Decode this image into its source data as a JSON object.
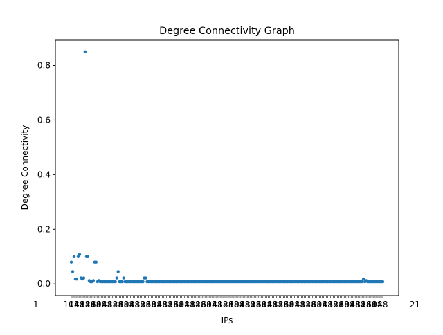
{
  "chart_data": {
    "type": "scatter",
    "title": "Degree Connectivity Graph",
    "xlabel": "IPs",
    "ylabel": "Degree Connectivity",
    "ylim": [
      -0.0425,
      0.8925
    ],
    "y_ticks": [
      0.0,
      0.2,
      0.4,
      0.6,
      0.8
    ],
    "y_tick_labels": [
      "0.0",
      "0.2",
      "0.4",
      "0.6",
      "0.8"
    ],
    "x_tick_labels_note": "overlapping IP labels (illegible)",
    "grid": false,
    "legend": "none",
    "marker_color": "#1f77b4",
    "series": [
      {
        "values": [
          0.08,
          0.045,
          0.1,
          0.018,
          0.018,
          0.1,
          0.108,
          0.022,
          0.018,
          0.022,
          0.85,
          0.1,
          0.1,
          0.012,
          0.008,
          0.008,
          0.012,
          0.08,
          0.08,
          0.008,
          0.012,
          0.008,
          0.008,
          0.008,
          0.008,
          0.008,
          0.008,
          0.008,
          0.008,
          0.008,
          0.008,
          0.008,
          0.008,
          0.022,
          0.045,
          0.008,
          0.008,
          0.008,
          0.022,
          0.008,
          0.008,
          0.008,
          0.008,
          0.008,
          0.008,
          0.008,
          0.008,
          0.008,
          0.008,
          0.008,
          0.008,
          0.008,
          0.008,
          0.022,
          0.022,
          0.008,
          0.008,
          0.008,
          0.008,
          0.008,
          0.008,
          0.008,
          0.008,
          0.008,
          0.008,
          0.008,
          0.008,
          0.008,
          0.008,
          0.008,
          0.008,
          0.008,
          0.008,
          0.008,
          0.008,
          0.008,
          0.008,
          0.008,
          0.008,
          0.008,
          0.008,
          0.008,
          0.008,
          0.008,
          0.008,
          0.008,
          0.008,
          0.008,
          0.008,
          0.008,
          0.008,
          0.008,
          0.008,
          0.008,
          0.008,
          0.008,
          0.008,
          0.008,
          0.008,
          0.008,
          0.008,
          0.008,
          0.008,
          0.008,
          0.008,
          0.008,
          0.008,
          0.008,
          0.008,
          0.008,
          0.008,
          0.008,
          0.008,
          0.008,
          0.008,
          0.008,
          0.008,
          0.008,
          0.008,
          0.008,
          0.008,
          0.008,
          0.008,
          0.008,
          0.008,
          0.008,
          0.008,
          0.008,
          0.008,
          0.008,
          0.008,
          0.008,
          0.008,
          0.008,
          0.008,
          0.008,
          0.008,
          0.008,
          0.008,
          0.008,
          0.008,
          0.008,
          0.008,
          0.008,
          0.008,
          0.008,
          0.008,
          0.008,
          0.008,
          0.008,
          0.008,
          0.008,
          0.008,
          0.008,
          0.008,
          0.008,
          0.008,
          0.008,
          0.008,
          0.008,
          0.008,
          0.008,
          0.008,
          0.008,
          0.008,
          0.008,
          0.008,
          0.008,
          0.008,
          0.008,
          0.008,
          0.008,
          0.008,
          0.008,
          0.008,
          0.008,
          0.008,
          0.008,
          0.008,
          0.008,
          0.008,
          0.008,
          0.008,
          0.008,
          0.008,
          0.008,
          0.008,
          0.008,
          0.008,
          0.008,
          0.008,
          0.008,
          0.008,
          0.008,
          0.008,
          0.008,
          0.008,
          0.008,
          0.008,
          0.008,
          0.008,
          0.008,
          0.008,
          0.008,
          0.008,
          0.008,
          0.008,
          0.008,
          0.008,
          0.008,
          0.008,
          0.008,
          0.018,
          0.008,
          0.012,
          0.008,
          0.008,
          0.008,
          0.008,
          0.008,
          0.008,
          0.008,
          0.008,
          0.008,
          0.008,
          0.008,
          0.008
        ]
      }
    ]
  }
}
